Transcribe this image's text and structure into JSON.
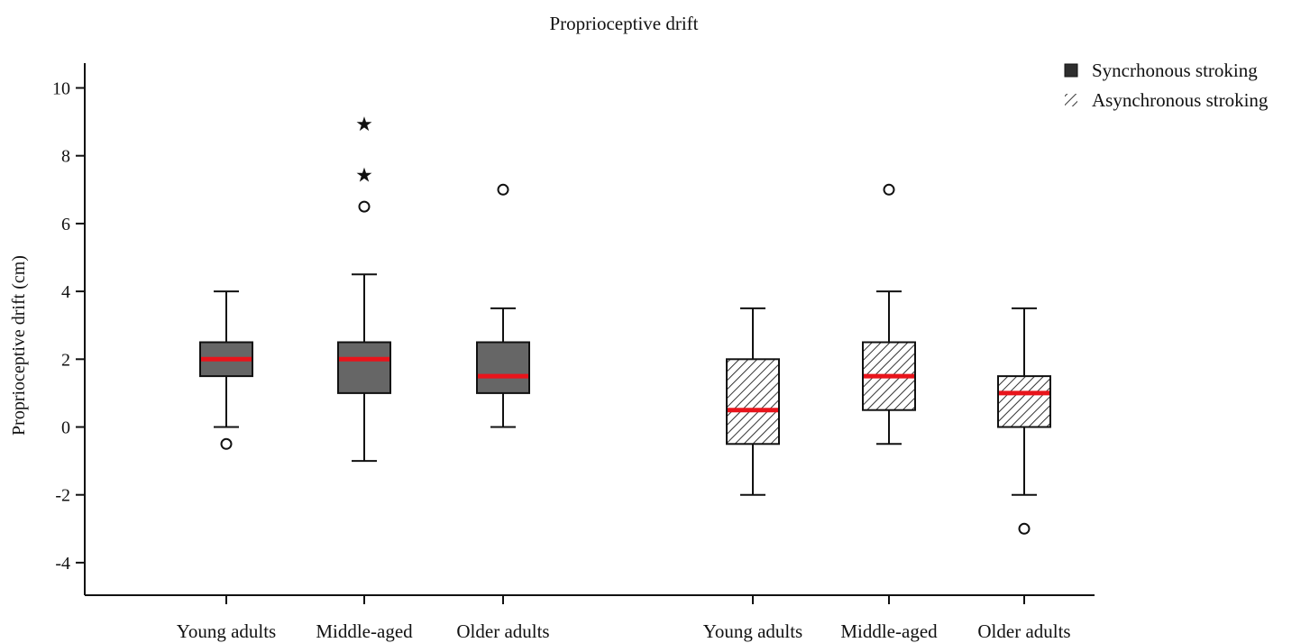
{
  "chart_data": {
    "type": "boxplot",
    "title": "Proprioceptive drift",
    "ylabel": "Proprioceptive drift (cm)",
    "xlabel": "",
    "ylim": [
      -5,
      10.8
    ],
    "yticks": [
      -4,
      -2,
      0,
      2,
      4,
      6,
      8,
      10
    ],
    "grid": false,
    "legend_position": "top-right",
    "colors": {
      "synchronous_fill": "#666666",
      "median": "#e8141b",
      "stroke": "#111111",
      "hatch": "#333333"
    },
    "legend": [
      {
        "name": "Syncrhonous stroking",
        "style": "solid"
      },
      {
        "name": "Asynchronous stroking",
        "style": "hatched"
      }
    ],
    "boxes": [
      {
        "category": "Young adults",
        "group": "Syncrhonous stroking",
        "whisker_low": 0,
        "q1": 1.5,
        "median": 2,
        "q3": 2.5,
        "whisker_high": 4,
        "outliers": [
          -0.5
        ],
        "extremes": []
      },
      {
        "category": "Middle-aged",
        "group": "Syncrhonous stroking",
        "whisker_low": -1,
        "q1": 1,
        "median": 2,
        "q3": 2.5,
        "whisker_high": 4.5,
        "outliers": [
          6.5
        ],
        "extremes": [
          7.5,
          9
        ]
      },
      {
        "category": "Older adults",
        "group": "Syncrhonous stroking",
        "whisker_low": 0,
        "q1": 1,
        "median": 1.5,
        "q3": 2.5,
        "whisker_high": 3.5,
        "outliers": [
          7
        ],
        "extremes": []
      },
      {
        "category": "Young adults",
        "group": "Asynchronous stroking",
        "whisker_low": -2,
        "q1": -0.5,
        "median": 0.5,
        "q3": 2,
        "whisker_high": 3.5,
        "outliers": [],
        "extremes": []
      },
      {
        "category": "Middle-aged",
        "group": "Asynchronous stroking",
        "whisker_low": -0.5,
        "q1": 0.5,
        "median": 1.5,
        "q3": 2.5,
        "whisker_high": 4,
        "outliers": [
          7
        ],
        "extremes": []
      },
      {
        "category": "Older adults",
        "group": "Asynchronous stroking",
        "whisker_low": -2,
        "q1": 0,
        "median": 1,
        "q3": 1.5,
        "whisker_high": 3.5,
        "outliers": [
          -3
        ],
        "extremes": []
      }
    ]
  }
}
